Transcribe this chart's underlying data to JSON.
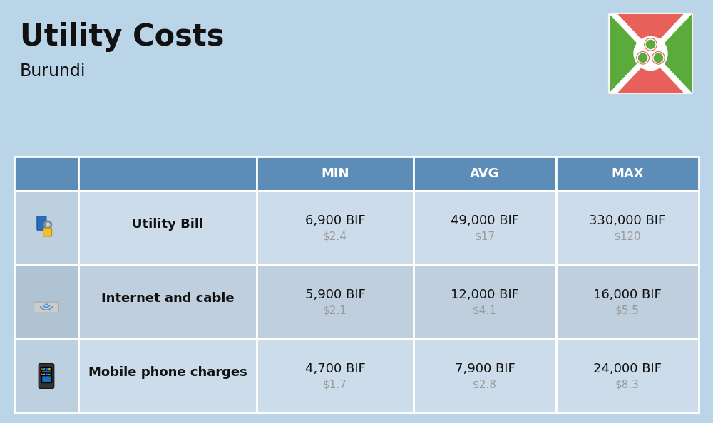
{
  "title": "Utility Costs",
  "subtitle": "Burundi",
  "background_color": "#bad4e8",
  "header_bg_color": "#5b8db8",
  "header_text_color": "#ffffff",
  "row_bg_color_odd": "#ccdceb",
  "row_bg_color_even": "#bfcfde",
  "icon_col_bg_odd": "#bdd0e0",
  "icon_col_bg_even": "#b0c3d3",
  "divider_color": "#ffffff",
  "col_headers": [
    "MIN",
    "AVG",
    "MAX"
  ],
  "rows": [
    {
      "label": "Utility Bill",
      "min_bif": "6,900 BIF",
      "min_usd": "$2.4",
      "avg_bif": "49,000 BIF",
      "avg_usd": "$17",
      "max_bif": "330,000 BIF",
      "max_usd": "$120"
    },
    {
      "label": "Internet and cable",
      "min_bif": "5,900 BIF",
      "min_usd": "$2.1",
      "avg_bif": "12,000 BIF",
      "avg_usd": "$4.1",
      "max_bif": "16,000 BIF",
      "max_usd": "$5.5"
    },
    {
      "label": "Mobile phone charges",
      "min_bif": "4,700 BIF",
      "min_usd": "$1.7",
      "avg_bif": "7,900 BIF",
      "avg_usd": "$2.8",
      "max_bif": "24,000 BIF",
      "max_usd": "$8.3"
    }
  ],
  "title_fontsize": 30,
  "subtitle_fontsize": 17,
  "header_fontsize": 13,
  "label_fontsize": 13,
  "value_fontsize": 13,
  "usd_fontsize": 11,
  "usd_color": "#999999",
  "label_color": "#111111",
  "value_color": "#111111",
  "flag_red": "#e8605a",
  "flag_green": "#5aaa3c",
  "flag_white": "#ffffff"
}
